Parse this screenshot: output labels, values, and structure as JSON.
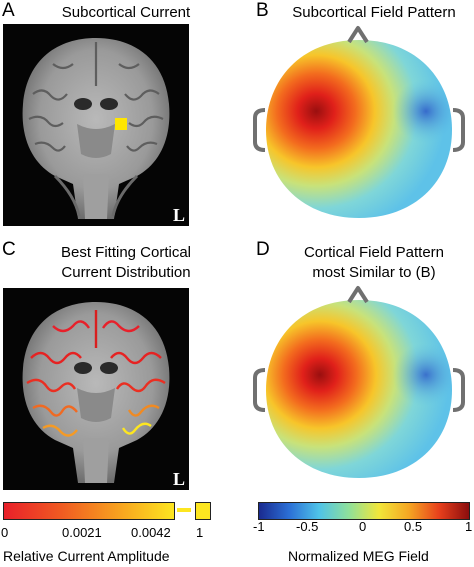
{
  "panels": [
    {
      "letter": "A",
      "title": "Subcortical Current",
      "orientation_mark": "L"
    },
    {
      "letter": "B",
      "title": "Subcortical Field Pattern"
    },
    {
      "letter": "C",
      "title_lines": [
        "Best Fitting Cortical",
        "Current Distribution"
      ],
      "orientation_mark": "L"
    },
    {
      "letter": "D",
      "title_lines": [
        "Cortical Field Pattern",
        "most Similar to (B)"
      ]
    }
  ],
  "colorbars": {
    "current": {
      "ticks": [
        "0",
        "0.0021",
        "0.0042",
        "1"
      ],
      "label": "Relative Current Amplitude",
      "colors": [
        "#e8202a",
        "#f05a22",
        "#f7a01f",
        "#fde620"
      ]
    },
    "field": {
      "ticks": [
        "-1",
        "-0.5",
        "0",
        "0.5",
        "1"
      ],
      "label": "Normalized MEG Field",
      "colors": [
        "#1a2a8f",
        "#2b6fd6",
        "#4fc3e8",
        "#8fe09a",
        "#f2e63a",
        "#f5a623",
        "#e8401c",
        "#8b0d0d"
      ]
    }
  }
}
